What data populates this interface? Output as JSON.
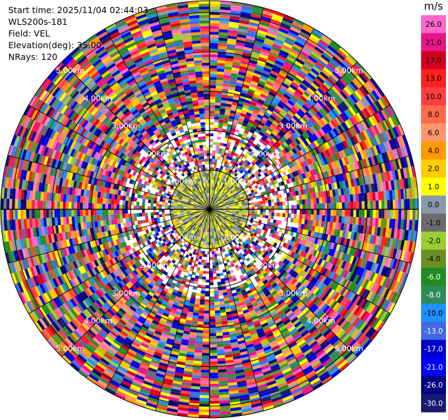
{
  "header": {
    "start_time": "Start time: 2025/11/04 02:44:03",
    "instrument": "WLS200s-181",
    "field": "Field: VEL",
    "elevation": "Elevation(deg): 35.00",
    "nrays": "NRays: 120"
  },
  "chart_data": {
    "type": "heatmap",
    "title": "",
    "projection": "polar (PPI scan)",
    "n_rays": 120,
    "range_rings_km": [
      1,
      2,
      3,
      4,
      5
    ],
    "ring_labels": [
      "1.00km",
      "2.00km",
      "3.00km",
      "4.00km",
      "5.00km"
    ],
    "ray_lines_every_deg": 15,
    "colorbar": {
      "unit": "m/s",
      "ticks": [
        "26.0",
        "21.0",
        "17.0",
        "13.0",
        "10.0",
        "8.0",
        "6.0",
        "4.0",
        "2.0",
        "1.0",
        "0.0",
        "-1.0",
        "-2.0",
        "-4.0",
        "-6.0",
        "-8.0",
        "-10.0",
        "-13.0",
        "-17.0",
        "-21.0",
        "-26.0",
        "-30.0"
      ],
      "colors": [
        "#ff66cc",
        "#e8158a",
        "#d2001e",
        "#ff2020",
        "#ff4040",
        "#ff6a4a",
        "#ff9670",
        "#ff9a00",
        "#ffcc00",
        "#ffff00",
        "#8899aa",
        "#6b6b6b",
        "#9acd32",
        "#6b8e23",
        "#228b22",
        "#2e8b57",
        "#1e90ff",
        "#4169e1",
        "#0000cd",
        "#0000ff",
        "#000080",
        "#191970"
      ]
    }
  }
}
